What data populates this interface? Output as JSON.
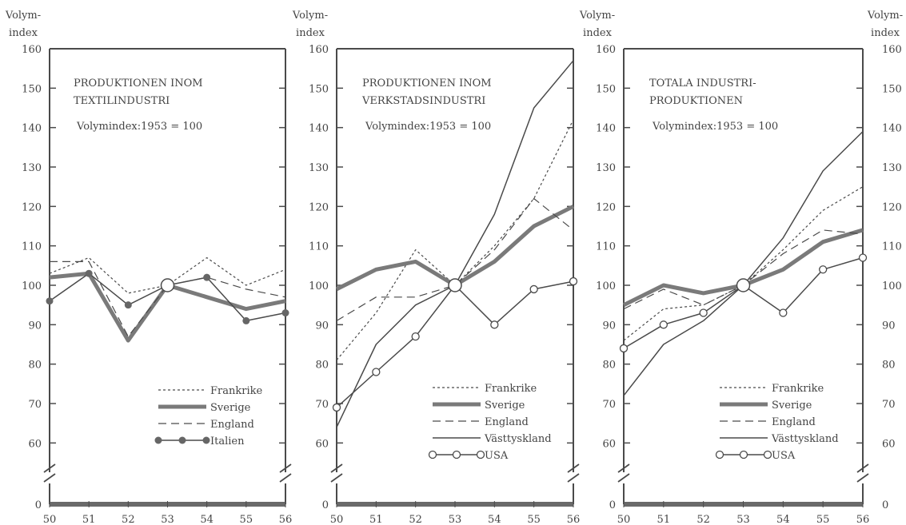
{
  "chart_data": [
    {
      "type": "line",
      "title_lines": [
        "PRODUKTIONEN INOM",
        "TEXTILINDUSTRI"
      ],
      "subtitle": "Volymindex:1953 = 100",
      "ylabel_lines": [
        "Volym-",
        "index"
      ],
      "x": [
        "50",
        "51",
        "52",
        "53",
        "54",
        "55",
        "56"
      ],
      "yticks": [
        "160",
        "150",
        "140",
        "130",
        "120",
        "110",
        "100",
        "90",
        "80",
        "70",
        "60",
        "0"
      ],
      "ylim": [
        55,
        160
      ],
      "axis_break": true,
      "series": [
        {
          "name": "Frankrike",
          "style": "dotted",
          "values": [
            103,
            107,
            98,
            100,
            107,
            100,
            104
          ]
        },
        {
          "name": "Sverige",
          "style": "thick",
          "values": [
            102,
            103,
            86,
            100,
            97,
            94,
            96
          ]
        },
        {
          "name": "England",
          "style": "dashed",
          "values": [
            106,
            106,
            87,
            100,
            102,
            99,
            97
          ]
        },
        {
          "name": "Italien",
          "style": "dots",
          "values": [
            96,
            103,
            95,
            100,
            102,
            91,
            93
          ]
        }
      ],
      "legend_position": "bottom-right"
    },
    {
      "type": "line",
      "title_lines": [
        "PRODUKTIONEN INOM",
        "VERKSTADSINDUSTRI"
      ],
      "subtitle": "Volymindex:1953 = 100",
      "ylabel_lines": [
        "Volym-",
        "index"
      ],
      "x": [
        "50",
        "51",
        "52",
        "53",
        "54",
        "55",
        "56"
      ],
      "yticks": [
        "160",
        "150",
        "140",
        "130",
        "120",
        "110",
        "100",
        "90",
        "80",
        "70",
        "60",
        "0"
      ],
      "ylim": [
        55,
        160
      ],
      "axis_break": true,
      "series": [
        {
          "name": "Frankrike",
          "style": "dotted",
          "values": [
            81,
            93,
            109,
            100,
            110,
            122,
            142
          ]
        },
        {
          "name": "Sverige",
          "style": "thick",
          "values": [
            99,
            104,
            106,
            100,
            106,
            115,
            120
          ]
        },
        {
          "name": "England",
          "style": "dashed",
          "values": [
            91,
            97,
            97,
            100,
            109,
            122,
            114
          ]
        },
        {
          "name": "Västtyskland",
          "style": "solid",
          "values": [
            64,
            85,
            95,
            100,
            118,
            145,
            157
          ]
        },
        {
          "name": "USA",
          "style": "circles",
          "values": [
            69,
            78,
            87,
            100,
            90,
            99,
            101
          ]
        }
      ],
      "legend_position": "bottom-right"
    },
    {
      "type": "line",
      "title_lines": [
        "TOTALA INDUSTRI-",
        "PRODUKTIONEN"
      ],
      "subtitle": "Volymindex:1953 = 100",
      "ylabel_lines": [
        "Volym-",
        "index"
      ],
      "x": [
        "50",
        "51",
        "52",
        "53",
        "54",
        "55",
        "56"
      ],
      "yticks": [
        "160",
        "150",
        "140",
        "130",
        "120",
        "110",
        "100",
        "90",
        "80",
        "70",
        "60",
        "0"
      ],
      "ylim": [
        55,
        160
      ],
      "axis_break": true,
      "series": [
        {
          "name": "Frankrike",
          "style": "dotted",
          "values": [
            86,
            94,
            95,
            100,
            109,
            119,
            125
          ]
        },
        {
          "name": "Sverige",
          "style": "thick",
          "values": [
            95,
            100,
            98,
            100,
            104,
            111,
            114
          ]
        },
        {
          "name": "England",
          "style": "dashed",
          "values": [
            94,
            99,
            95,
            100,
            108,
            114,
            113
          ]
        },
        {
          "name": "Västtyskland",
          "style": "solid",
          "values": [
            72,
            85,
            91,
            100,
            112,
            129,
            139
          ]
        },
        {
          "name": "USA",
          "style": "circles",
          "values": [
            84,
            90,
            93,
            100,
            93,
            104,
            107
          ]
        }
      ],
      "legend_position": "bottom-right"
    }
  ],
  "colors": {
    "ink": "#4a4a4a",
    "thick": "#7a7a7a",
    "baseline": "#6a6a6a"
  }
}
